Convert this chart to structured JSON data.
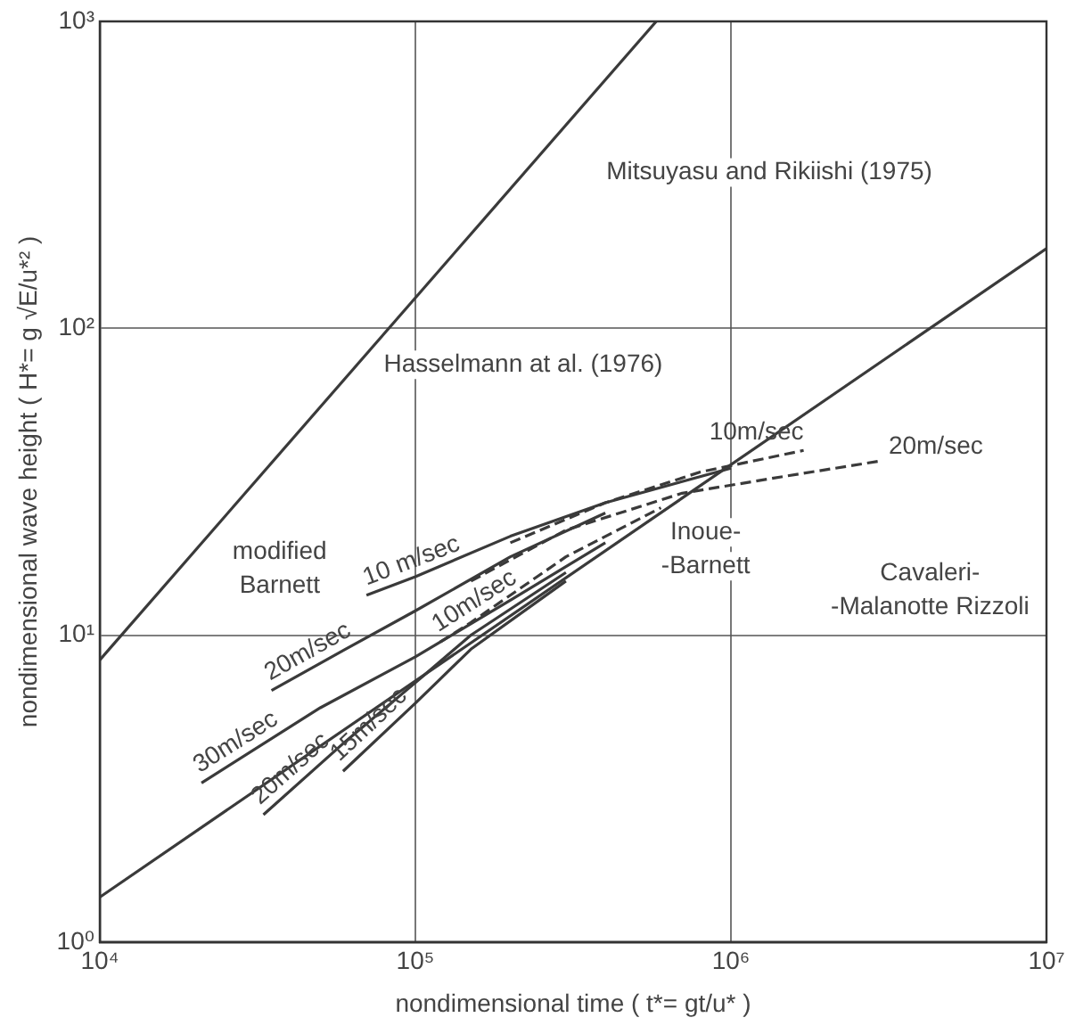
{
  "chart_data": {
    "type": "line",
    "xlabel": "nondimensional time ( t*= gt/u* )",
    "ylabel": "nondimensional wave height ( H*= g √E/u*² )",
    "log": "xy",
    "grid": true,
    "legend": false,
    "marker": "none",
    "xlim": [
      10000,
      10000000
    ],
    "ylim": [
      1,
      1000
    ],
    "xticks": [
      {
        "value": 10000,
        "label": "10⁴"
      },
      {
        "value": 100000,
        "label": "10⁵"
      },
      {
        "value": 1000000,
        "label": "10⁶"
      },
      {
        "value": 10000000,
        "label": "10⁷"
      }
    ],
    "yticks": [
      {
        "value": 1,
        "label": "10⁰"
      },
      {
        "value": 10,
        "label": "10¹"
      },
      {
        "value": 100,
        "label": "10²"
      },
      {
        "value": 1000,
        "label": "10³"
      }
    ],
    "series": [
      {
        "color": "#3a3a3a",
        "line_style": "solid",
        "x": [
          10000,
          580000
        ],
        "values": [
          8.3,
          1000
        ]
      },
      {
        "color": "#3a3a3a",
        "line_style": "solid",
        "x": [
          10000,
          10000000
        ],
        "values": [
          1.4,
          182
        ]
      },
      {
        "name": "10 m/sec",
        "color": "#3a3a3a",
        "line_style": "solid",
        "x": [
          70000,
          100000,
          200000,
          400000,
          1000000
        ],
        "values": [
          13.5,
          15.5,
          21,
          27,
          35
        ]
      },
      {
        "name": "20m/sec",
        "color": "#3a3a3a",
        "line_style": "solid",
        "x": [
          35000,
          60000,
          100000,
          200000,
          400000
        ],
        "values": [
          6.6,
          9,
          12,
          18,
          25
        ]
      },
      {
        "name": "30m/sec",
        "color": "#3a3a3a",
        "line_style": "solid",
        "x": [
          21000,
          50000,
          100000,
          200000,
          400000
        ],
        "values": [
          3.3,
          5.8,
          8.5,
          13,
          20
        ]
      },
      {
        "name": "20m/sec",
        "color": "#3a3a3a",
        "line_style": "solid",
        "x": [
          33000,
          60000,
          100000,
          150000,
          300000
        ],
        "values": [
          2.6,
          4.5,
          7,
          10,
          16
        ]
      },
      {
        "name": "15m/sec",
        "color": "#3a3a3a",
        "line_style": "solid",
        "x": [
          59000,
          100000,
          150000,
          300000
        ],
        "values": [
          3.6,
          6,
          9,
          15
        ]
      },
      {
        "name": "10m/sec",
        "color": "#3a3a3a",
        "line_style": "dashed",
        "x": [
          120000,
          150000,
          300000,
          600000
        ],
        "values": [
          9.5,
          11,
          18,
          26
        ]
      },
      {
        "name": "10m/sec",
        "color": "#3a3a3a",
        "line_style": "dashed",
        "x": [
          200000,
          400000,
          800000,
          1700000
        ],
        "values": [
          20,
          27,
          34,
          40
        ]
      },
      {
        "name": "20m/sec",
        "color": "#3a3a3a",
        "line_style": "dashed",
        "x": [
          150000,
          300000,
          700000,
          1500000,
          3000000
        ],
        "values": [
          15,
          22,
          29,
          33,
          37
        ]
      }
    ],
    "annotations": [
      "Mitsuyasu and Rikiishi (1975)",
      "Hasselmann at al. (1976)",
      "modified\nBarnett",
      "Inoue-\n-Barnett",
      "Cavaleri-\n-Malanotte Rizzoli"
    ]
  }
}
